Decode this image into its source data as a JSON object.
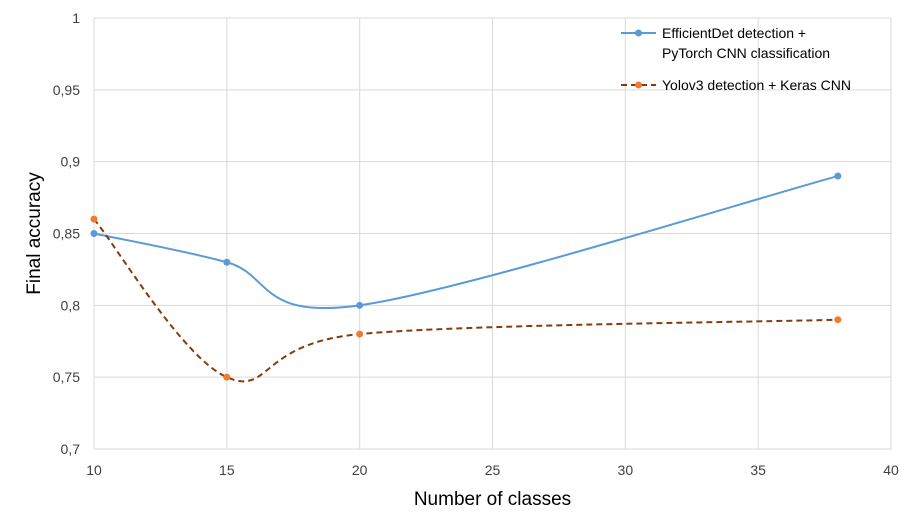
{
  "chart_data": {
    "type": "line",
    "xlabel": "Number of classes",
    "ylabel": "Final accuracy",
    "xlim": [
      10,
      40
    ],
    "ylim": [
      0.7,
      1
    ],
    "xticks": [
      10,
      15,
      20,
      25,
      30,
      35,
      40
    ],
    "yticks": [
      0.7,
      0.75,
      0.8,
      0.85,
      0.9,
      0.95,
      1
    ],
    "x_tick_labels": [
      "10",
      "15",
      "20",
      "25",
      "30",
      "35",
      "40"
    ],
    "y_tick_labels": [
      "0,7",
      "0,75",
      "0,8",
      "0,85",
      "0,9",
      "0,95",
      "1"
    ],
    "grid": true,
    "legend_position": "top-right",
    "series": [
      {
        "name_lines": [
          "EfficientDet detection +",
          "PyTorch CNN classification"
        ],
        "x": [
          10,
          15,
          20,
          38
        ],
        "y": [
          0.85,
          0.83,
          0.8,
          0.89
        ],
        "color": "#5b9bd5",
        "marker_color": "#5b9bd5",
        "line_style": "solid",
        "smooth": true
      },
      {
        "name_lines": [
          "Yolov3 detection + Keras CNN"
        ],
        "x": [
          10,
          15,
          20,
          38
        ],
        "y": [
          0.86,
          0.75,
          0.78,
          0.79
        ],
        "color": "#843c0c",
        "marker_color": "#ed7d31",
        "line_style": "dashed",
        "smooth": true
      }
    ]
  }
}
